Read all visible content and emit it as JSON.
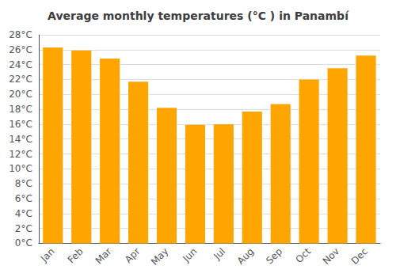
{
  "chart_data": {
    "type": "bar",
    "title": "Average monthly temperatures (°C ) in Panambí",
    "categories": [
      "Jan",
      "Feb",
      "Mar",
      "Apr",
      "May",
      "Jun",
      "Jul",
      "Aug",
      "Sep",
      "Oct",
      "Nov",
      "Dec"
    ],
    "values": [
      26.3,
      25.9,
      24.8,
      21.7,
      18.2,
      15.9,
      16.0,
      17.7,
      18.7,
      22.0,
      23.5,
      25.2
    ],
    "color": "#FFA500",
    "ylim": [
      0,
      28
    ],
    "yticks": [
      {
        "value": 0,
        "label": "0°C"
      },
      {
        "value": 2,
        "label": "2°C"
      },
      {
        "value": 4,
        "label": "4°C"
      },
      {
        "value": 6,
        "label": "6°C"
      },
      {
        "value": 8,
        "label": "8°C"
      },
      {
        "value": 10,
        "label": "10°C"
      },
      {
        "value": 12,
        "label": "12°C"
      },
      {
        "value": 14,
        "label": "14°C"
      },
      {
        "value": 16,
        "label": "16°C"
      },
      {
        "value": 18,
        "label": "18°C"
      },
      {
        "value": 20,
        "label": "20°C"
      },
      {
        "value": 22,
        "label": "22°C"
      },
      {
        "value": 24,
        "label": "24°C"
      },
      {
        "value": 26,
        "label": "26°C"
      },
      {
        "value": 28,
        "label": "28°C"
      }
    ],
    "grid": true
  }
}
